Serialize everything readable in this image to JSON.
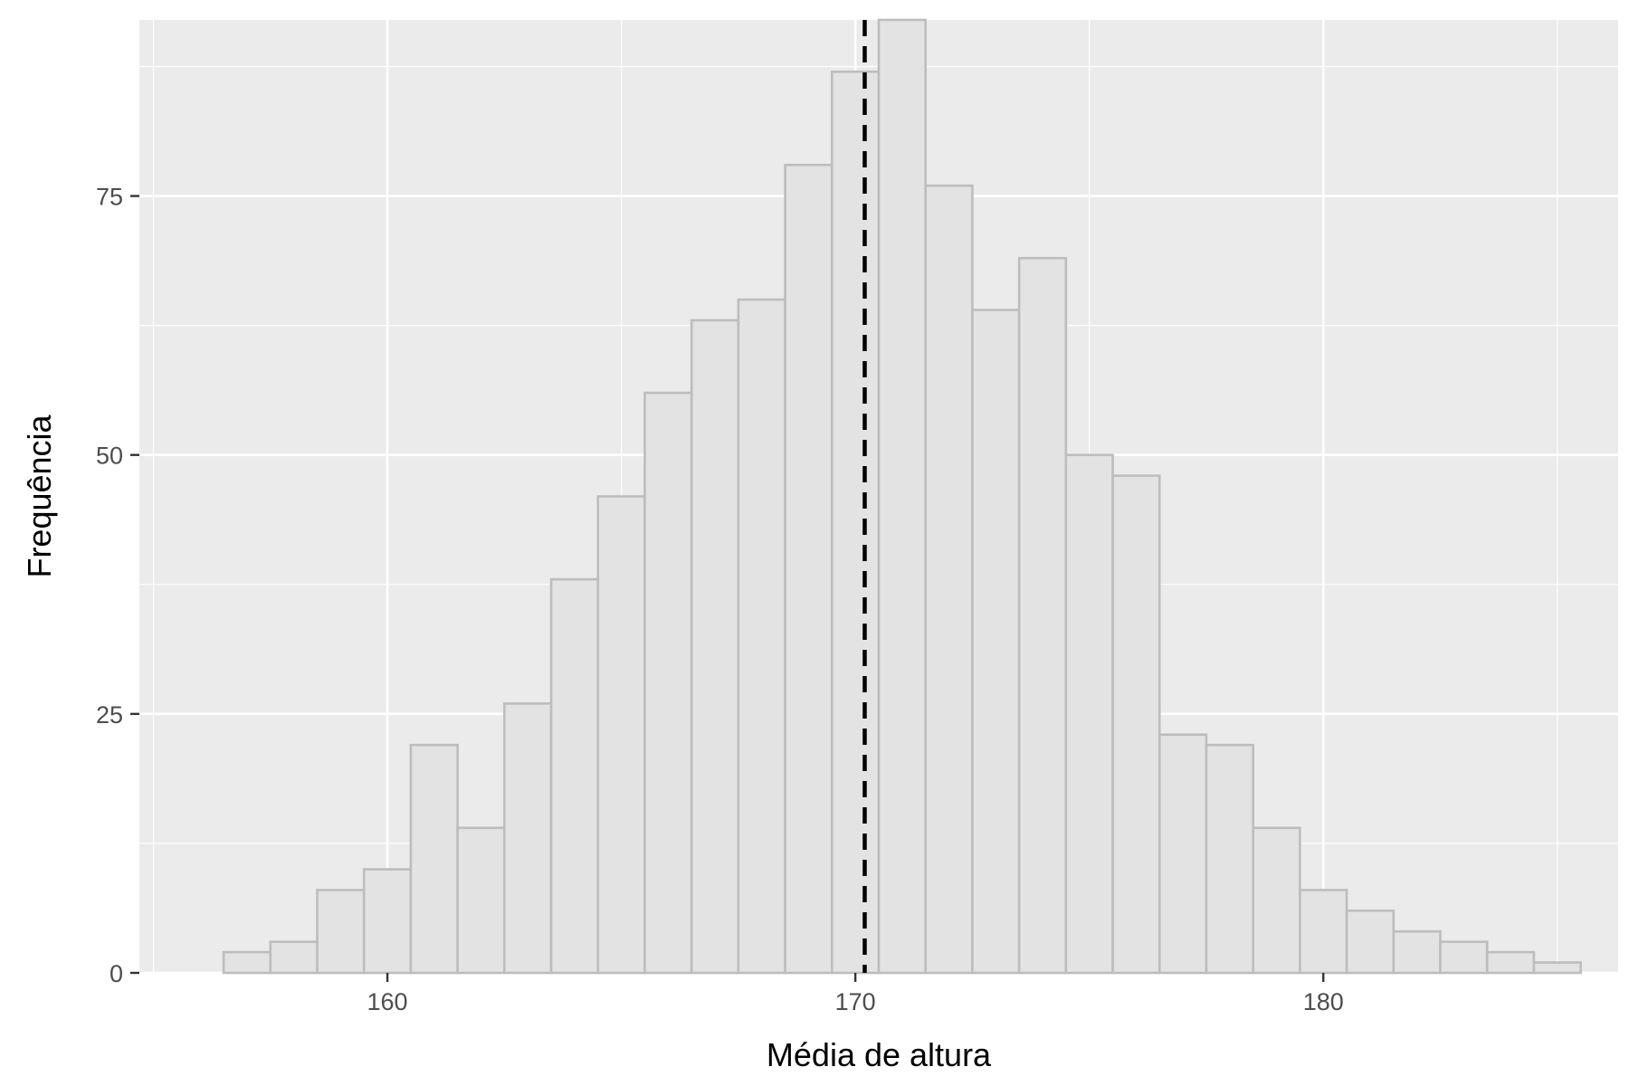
{
  "colors": {
    "panel_background": "#ebebeb",
    "grid_major": "#ffffff",
    "bar_fill": "#e3e3e3",
    "bar_outline": "#bdbdbd",
    "reference_line": "#000000",
    "tick_text": "#4d4d4d",
    "axis_title": "#000000"
  },
  "chart_data": {
    "type": "bar",
    "subtype": "histogram",
    "xlabel": "Média de altura",
    "ylabel": "Frequência",
    "xlim": [
      154.7,
      186.3
    ],
    "ylim": [
      0,
      92
    ],
    "x_ticks": [
      160,
      170,
      180
    ],
    "y_ticks": [
      0,
      25,
      50,
      75
    ],
    "grid": true,
    "legend": "none",
    "bin_width": 1,
    "bins": [
      {
        "x0": 156.5,
        "x1": 157.5,
        "count": 2
      },
      {
        "x0": 157.5,
        "x1": 158.5,
        "count": 3
      },
      {
        "x0": 158.5,
        "x1": 159.5,
        "count": 8
      },
      {
        "x0": 159.5,
        "x1": 160.5,
        "count": 10
      },
      {
        "x0": 160.5,
        "x1": 161.5,
        "count": 22
      },
      {
        "x0": 161.5,
        "x1": 162.5,
        "count": 14
      },
      {
        "x0": 162.5,
        "x1": 163.5,
        "count": 26
      },
      {
        "x0": 163.5,
        "x1": 164.5,
        "count": 38
      },
      {
        "x0": 164.5,
        "x1": 165.5,
        "count": 46
      },
      {
        "x0": 165.5,
        "x1": 166.5,
        "count": 56
      },
      {
        "x0": 166.5,
        "x1": 167.5,
        "count": 63
      },
      {
        "x0": 167.5,
        "x1": 168.5,
        "count": 65
      },
      {
        "x0": 168.5,
        "x1": 169.5,
        "count": 78
      },
      {
        "x0": 169.5,
        "x1": 170.5,
        "count": 87
      },
      {
        "x0": 170.5,
        "x1": 171.5,
        "count": 92
      },
      {
        "x0": 171.5,
        "x1": 172.5,
        "count": 76
      },
      {
        "x0": 172.5,
        "x1": 173.5,
        "count": 64
      },
      {
        "x0": 173.5,
        "x1": 174.5,
        "count": 69
      },
      {
        "x0": 174.5,
        "x1": 175.5,
        "count": 50
      },
      {
        "x0": 175.5,
        "x1": 176.5,
        "count": 48
      },
      {
        "x0": 176.5,
        "x1": 177.5,
        "count": 23
      },
      {
        "x0": 177.5,
        "x1": 178.5,
        "count": 22
      },
      {
        "x0": 178.5,
        "x1": 179.5,
        "count": 14
      },
      {
        "x0": 179.5,
        "x1": 180.5,
        "count": 8
      },
      {
        "x0": 180.5,
        "x1": 181.5,
        "count": 6
      },
      {
        "x0": 181.5,
        "x1": 182.5,
        "count": 4
      },
      {
        "x0": 182.5,
        "x1": 183.5,
        "count": 3
      },
      {
        "x0": 183.5,
        "x1": 184.5,
        "count": 2
      },
      {
        "x0": 184.5,
        "x1": 185.5,
        "count": 1
      }
    ],
    "reference_line": {
      "orientation": "vertical",
      "x": 170.2,
      "style": "dashed"
    }
  }
}
